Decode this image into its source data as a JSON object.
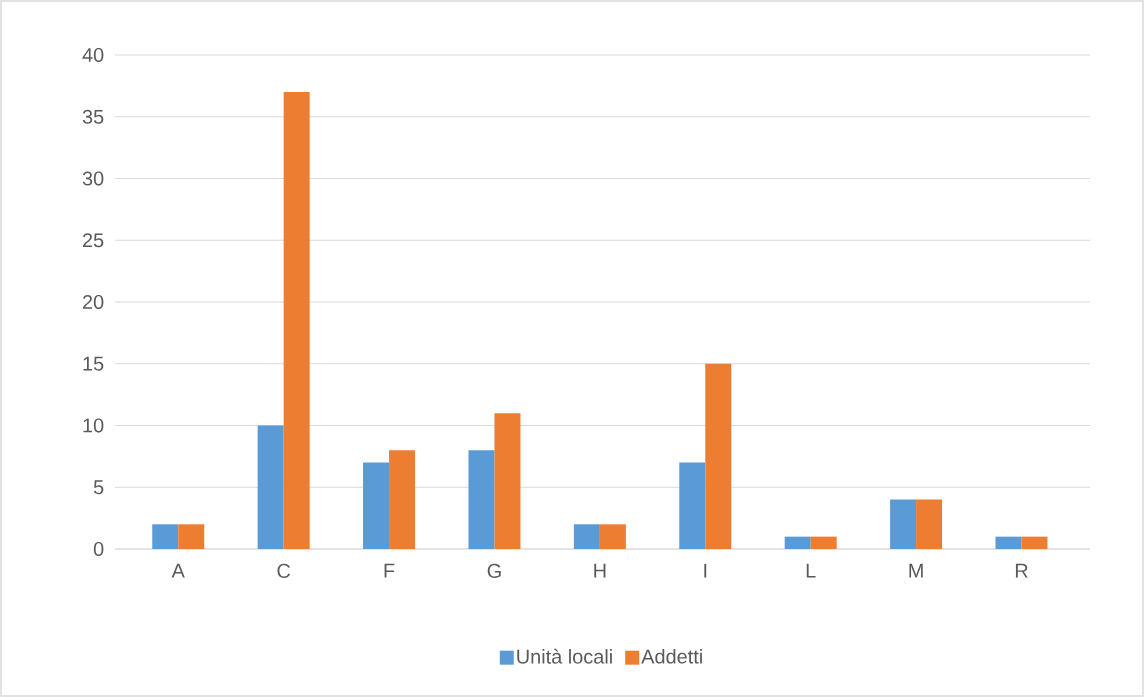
{
  "chart_data": {
    "type": "bar",
    "categories": [
      "A",
      "C",
      "F",
      "G",
      "H",
      "I",
      "L",
      "M",
      "R"
    ],
    "series": [
      {
        "name": "Unità locali",
        "color": "#5b9bd5",
        "values": [
          2,
          10,
          7,
          8,
          2,
          7,
          1,
          4,
          1
        ]
      },
      {
        "name": "Addetti",
        "color": "#ed7d31",
        "values": [
          2,
          37,
          8,
          11,
          2,
          15,
          1,
          4,
          1
        ]
      }
    ],
    "ylim": [
      0,
      40
    ],
    "yticks": [
      0,
      5,
      10,
      15,
      20,
      25,
      30,
      35,
      40
    ],
    "grid": "y",
    "legend": "bottom"
  }
}
